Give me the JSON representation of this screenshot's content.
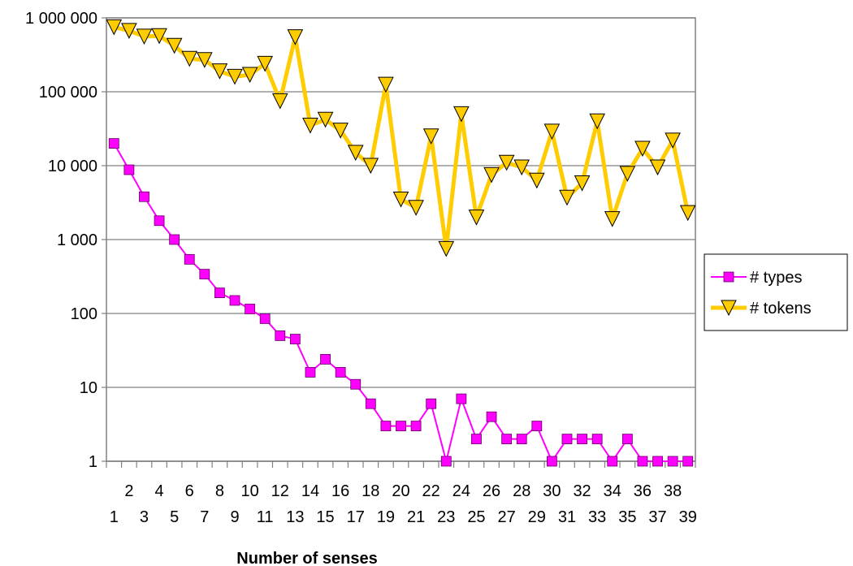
{
  "chart_data": {
    "type": "line",
    "title": "",
    "xlabel": "Number of senses",
    "ylabel": "",
    "y_scale": "log",
    "ylim": [
      1,
      1000000
    ],
    "y_tick_values": [
      1,
      10,
      100,
      1000,
      10000,
      100000,
      1000000
    ],
    "y_tick_labels": [
      "1",
      "10",
      "100",
      "1 000",
      "10 000",
      "100 000",
      "1 000 000"
    ],
    "x": [
      1,
      2,
      3,
      4,
      5,
      6,
      7,
      8,
      9,
      10,
      11,
      12,
      13,
      14,
      15,
      16,
      17,
      18,
      19,
      20,
      21,
      22,
      23,
      24,
      25,
      26,
      27,
      28,
      29,
      30,
      31,
      32,
      33,
      34,
      35,
      36,
      37,
      38,
      39
    ],
    "x_tick_labels": [
      "1",
      "2",
      "3",
      "4",
      "5",
      "6",
      "7",
      "8",
      "9",
      "10",
      "11",
      "12",
      "13",
      "14",
      "15",
      "16",
      "17",
      "18",
      "19",
      "20",
      "21",
      "22",
      "23",
      "24",
      "25",
      "26",
      "27",
      "28",
      "29",
      "30",
      "31",
      "32",
      "33",
      "34",
      "35",
      "36",
      "37",
      "38",
      "39"
    ],
    "grid": true,
    "legend_position": "right",
    "series": [
      {
        "name": "# types",
        "color": "#ff00ff",
        "marker": "square",
        "values": [
          20000,
          8800,
          3800,
          1800,
          1000,
          540,
          340,
          190,
          150,
          115,
          85,
          50,
          45,
          16,
          24,
          16,
          11,
          6,
          3,
          3,
          3,
          6,
          1,
          7,
          2,
          4,
          2,
          2,
          3,
          1,
          2,
          2,
          2,
          1,
          2,
          1,
          1,
          1,
          1
        ]
      },
      {
        "name": "# tokens",
        "color": "#ffcc00",
        "marker": "triangle-down",
        "values": [
          750000,
          670000,
          560000,
          570000,
          420000,
          280000,
          270000,
          190000,
          160000,
          170000,
          240000,
          75000,
          550000,
          35000,
          42000,
          30000,
          15000,
          10000,
          125000,
          3500,
          2700,
          25000,
          750,
          50000,
          2000,
          7500,
          11000,
          9500,
          6300,
          29000,
          3700,
          5800,
          40000,
          1900,
          7800,
          17000,
          9500,
          22000,
          2300
        ]
      }
    ]
  }
}
